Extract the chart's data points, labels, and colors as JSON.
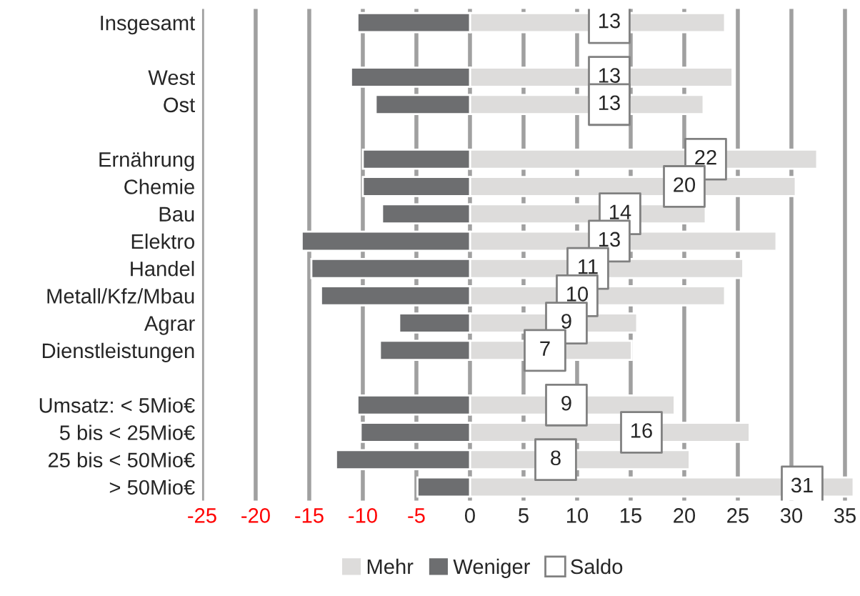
{
  "chart_data": {
    "type": "bar",
    "orientation": "horizontal",
    "stacked": true,
    "categories": [
      "Insgesamt",
      null,
      "West",
      "Ost",
      null,
      "Ernährung",
      "Chemie",
      "Bau",
      "Elektro",
      "Handel",
      "Metall/Kfz/Mbau",
      "Agrar",
      "Dienstleistungen",
      null,
      "Umsatz: < 5Mio€",
      "5 bis < 25Mio€",
      "25 bis < 50Mio€",
      "> 50Mio€"
    ],
    "series": [
      {
        "name": "Mehr",
        "color": "#dddcdb",
        "values": [
          23.8,
          null,
          24.5,
          21.8,
          null,
          32.4,
          30.4,
          22,
          28.6,
          25.5,
          23.8,
          15.6,
          15.1,
          null,
          19.1,
          26.1,
          20.5,
          35.8
        ]
      },
      {
        "name": "Weniger",
        "color": "#6d6e70",
        "values": [
          -10.5,
          null,
          -11.1,
          -8.8,
          null,
          -10,
          -10,
          -8.2,
          -15.7,
          -14.8,
          -13.9,
          -6.6,
          -8.4,
          null,
          -10.5,
          -10.2,
          -12.5,
          -4.9
        ]
      },
      {
        "name": "Saldo",
        "type": "scatter",
        "marker": "square",
        "color": "#808080",
        "values": [
          13,
          null,
          13,
          13,
          null,
          22,
          20,
          14,
          13,
          11,
          10,
          9,
          7,
          null,
          9,
          16,
          8,
          31
        ],
        "value_labels": [
          "13",
          null,
          "13",
          "13",
          null,
          "22",
          "20",
          "14",
          "13",
          "11",
          "10",
          "9",
          "7",
          null,
          "9",
          "16",
          "8",
          "31"
        ]
      }
    ],
    "xlim": [
      -25,
      36
    ],
    "xticks": [
      -25,
      -20,
      -15,
      -10,
      -5,
      0,
      5,
      10,
      15,
      20,
      25,
      30,
      35
    ],
    "grid": "x",
    "legend": "bottom"
  }
}
